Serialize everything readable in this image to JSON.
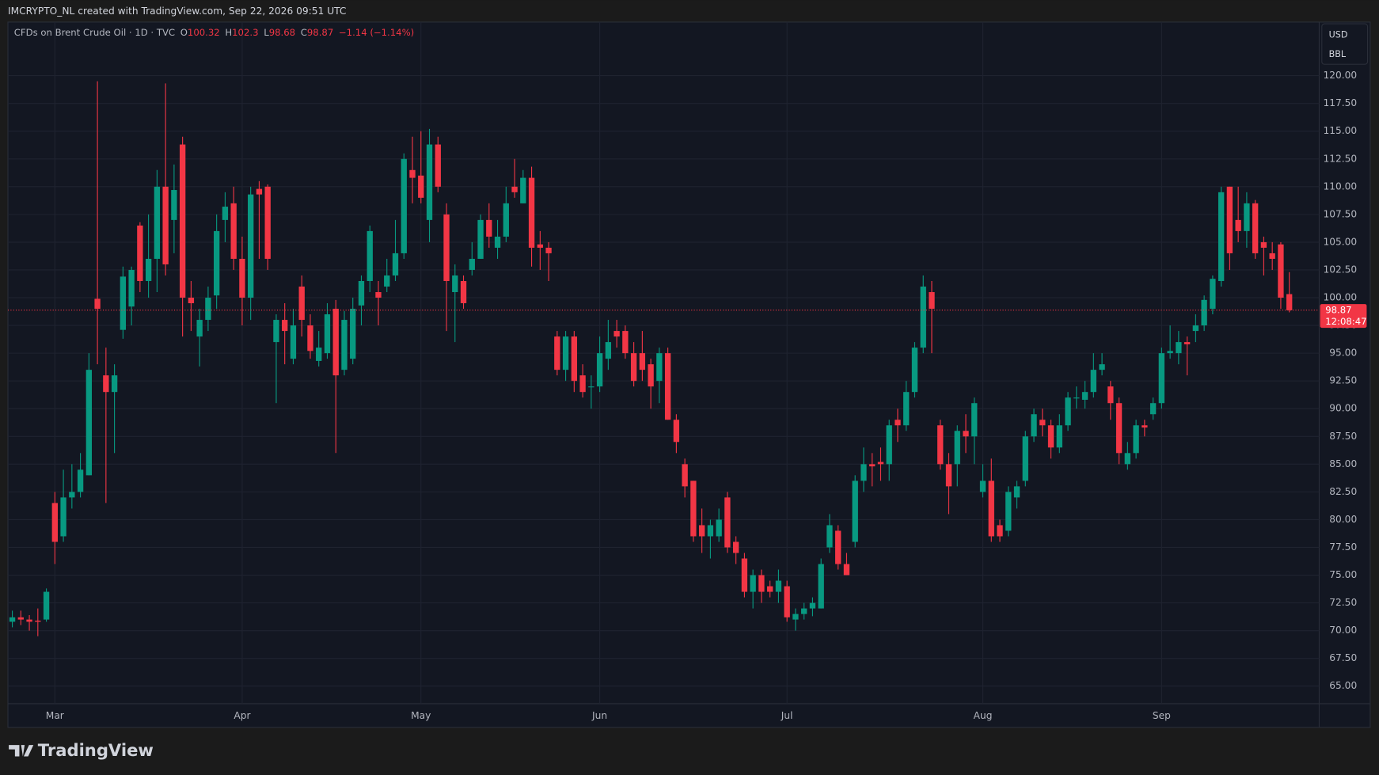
{
  "header": {
    "title": "IMCRYPTO_NL created with TradingView.com, Sep 22, 2026 09:51 UTC"
  },
  "footer": {
    "brand": "TradingView"
  },
  "chart_data": {
    "type": "candlestick",
    "symbol": "CFDs on Brent Crude Oil · 1D · TVC",
    "ohlc_letters": [
      "O",
      "H",
      "L",
      "C"
    ],
    "change_label": "−1.14 (−1.14%)",
    "currency": "USD",
    "unit": "BBL",
    "countdown": "12:08:47",
    "up_color": "#089981",
    "down_color": "#f23645",
    "grid": true,
    "categories": [
      null,
      null,
      null,
      null,
      null,
      "Mar",
      null,
      null,
      null,
      null,
      null,
      null,
      null,
      null,
      null,
      null,
      null,
      null,
      null,
      null,
      null,
      null,
      null,
      null,
      null,
      null,
      null,
      "Apr",
      null,
      null,
      null,
      null,
      null,
      null,
      null,
      null,
      null,
      null,
      null,
      null,
      null,
      null,
      null,
      null,
      null,
      null,
      null,
      null,
      "May",
      null,
      null,
      null,
      null,
      null,
      null,
      null,
      null,
      null,
      null,
      null,
      null,
      null,
      null,
      null,
      null,
      null,
      null,
      null,
      null,
      "Jun",
      null,
      null,
      null,
      null,
      null,
      null,
      null,
      null,
      null,
      null,
      null,
      null,
      null,
      null,
      null,
      null,
      null,
      null,
      null,
      null,
      null,
      "Jul",
      null,
      null,
      null,
      null,
      null,
      null,
      null,
      null,
      null,
      null,
      null,
      null,
      null,
      null,
      null,
      null,
      null,
      null,
      null,
      null,
      null,
      null,
      "Aug",
      null,
      null,
      null,
      null,
      null,
      null,
      null,
      null,
      null,
      null,
      null,
      null,
      null,
      null,
      null,
      null,
      null,
      null,
      null,
      null,
      "Sep",
      null,
      null,
      null,
      null,
      null,
      null,
      null,
      null,
      null,
      null,
      null,
      null,
      null,
      null,
      null
    ],
    "open": [
      70.8,
      71.2,
      71.0,
      70.9,
      71.0,
      81.5,
      78.5,
      82.0,
      82.5,
      84.0,
      99.9,
      93.0,
      91.5,
      97.1,
      99.2,
      106.5,
      101.5,
      103.5,
      110.0,
      107.0,
      113.8,
      100.0,
      96.5,
      98.0,
      100.2,
      107.0,
      108.5,
      103.5,
      100.0,
      109.8,
      110.0,
      96.0,
      98.0,
      94.5,
      101.0,
      97.5,
      94.3,
      95.0,
      99.0,
      93.5,
      94.5,
      99.3,
      101.5,
      100.5,
      101.0,
      102.0,
      104.0,
      111.5,
      111.0,
      107.0,
      113.8,
      107.5,
      100.5,
      101.5,
      102.5,
      103.5,
      107.0,
      104.5,
      105.5,
      110.0,
      108.5,
      110.8,
      104.8,
      104.5,
      96.5,
      93.5,
      96.5,
      93.0,
      92.0,
      92.0,
      94.5,
      97.0,
      97.0,
      95.0,
      95.0,
      94.0,
      92.5,
      95.0,
      89.0,
      85.0,
      83.5,
      79.5,
      78.5,
      78.5,
      82.0,
      78.0,
      76.5,
      73.5,
      75.0,
      74.0,
      73.5,
      74.0,
      71.0,
      71.5,
      72.0,
      72.0,
      77.5,
      79.0,
      76.0,
      78.0,
      83.5,
      85.0,
      85.2,
      85.0,
      89.0,
      88.5,
      91.5,
      95.5,
      100.5,
      88.5,
      85.0,
      85.0,
      88.0,
      87.5,
      82.5,
      83.5,
      79.5,
      79.0,
      82.0,
      83.5,
      87.5,
      89.0,
      88.5,
      86.5,
      88.5,
      91.0,
      90.8,
      91.5,
      93.5,
      92.0,
      90.5,
      85.0,
      86.0,
      88.5,
      89.5,
      90.5,
      95.0,
      95.0,
      96.0,
      97.0,
      97.5,
      99.0,
      101.5,
      110.0,
      107.0,
      106.0,
      108.5,
      105.0,
      104.0,
      104.8,
      100.32
    ],
    "high": [
      71.8,
      71.8,
      71.4,
      72.0,
      73.8,
      82.5,
      84.5,
      85.0,
      86.0,
      95.0,
      119.5,
      95.5,
      94.0,
      102.8,
      102.8,
      106.8,
      107.5,
      111.5,
      119.3,
      112.0,
      114.5,
      101.5,
      99.0,
      101.0,
      107.5,
      109.5,
      110.0,
      105.5,
      110.0,
      110.5,
      110.2,
      98.5,
      99.5,
      99.0,
      102.0,
      98.5,
      97.0,
      99.5,
      99.8,
      98.8,
      100.0,
      102.0,
      106.5,
      101.5,
      103.5,
      107.0,
      113.0,
      114.5,
      115.0,
      115.2,
      114.5,
      108.5,
      103.0,
      102.0,
      105.0,
      107.5,
      108.5,
      107.0,
      110.0,
      112.5,
      111.5,
      111.8,
      106.0,
      105.0,
      97.0,
      97.0,
      97.0,
      94.0,
      93.0,
      96.5,
      98.0,
      98.0,
      97.5,
      96.0,
      97.0,
      94.5,
      95.5,
      95.5,
      89.5,
      85.5,
      83.5,
      81.0,
      80.0,
      81.0,
      82.5,
      78.5,
      77.0,
      75.5,
      75.5,
      74.5,
      75.5,
      74.5,
      72.0,
      72.5,
      73.0,
      76.5,
      80.5,
      79.5,
      77.0,
      84.0,
      86.5,
      86.0,
      86.5,
      89.0,
      90.0,
      92.5,
      96.0,
      102.0,
      101.5,
      89.0,
      86.0,
      88.5,
      89.5,
      91.0,
      85.0,
      85.5,
      80.0,
      83.0,
      83.5,
      88.0,
      90.0,
      90.0,
      89.0,
      89.5,
      91.5,
      92.0,
      92.5,
      95.0,
      95.0,
      92.5,
      91.0,
      87.0,
      89.0,
      89.0,
      91.0,
      95.5,
      97.5,
      97.0,
      96.5,
      98.5,
      100.2,
      102.0,
      110.0,
      110.0,
      110.0,
      109.5,
      108.8,
      105.5,
      105.0,
      105.0,
      102.3
    ],
    "low": [
      70.3,
      70.5,
      70.0,
      69.5,
      70.8,
      76.0,
      78.0,
      81.0,
      82.0,
      84.0,
      94.0,
      81.5,
      86.0,
      96.3,
      97.5,
      100.5,
      100.0,
      100.5,
      102.0,
      104.0,
      96.5,
      97.0,
      93.8,
      97.0,
      99.0,
      105.0,
      102.5,
      97.5,
      98.0,
      103.5,
      102.5,
      90.5,
      94.0,
      94.0,
      96.5,
      94.5,
      93.8,
      94.5,
      86.0,
      93.0,
      94.0,
      97.5,
      100.5,
      97.5,
      100.5,
      101.5,
      103.5,
      108.5,
      108.5,
      105.0,
      109.5,
      97.0,
      96.0,
      99.0,
      102.0,
      103.5,
      104.5,
      103.5,
      105.0,
      109.0,
      108.5,
      102.8,
      102.5,
      101.5,
      93.0,
      92.5,
      91.5,
      91.0,
      90.0,
      91.5,
      93.5,
      95.5,
      94.5,
      92.0,
      92.5,
      90.0,
      90.5,
      89.0,
      86.0,
      82.0,
      78.0,
      77.0,
      76.5,
      78.0,
      77.0,
      76.0,
      73.0,
      72.0,
      72.5,
      73.0,
      72.5,
      70.8,
      70.0,
      71.0,
      71.3,
      72.0,
      77.0,
      75.5,
      75.0,
      77.5,
      82.5,
      83.0,
      83.5,
      83.5,
      87.0,
      88.0,
      91.0,
      95.0,
      95.0,
      84.5,
      80.5,
      83.0,
      86.0,
      85.0,
      82.0,
      78.0,
      78.0,
      78.5,
      81.0,
      83.0,
      87.0,
      87.5,
      85.5,
      86.0,
      88.0,
      90.0,
      90.0,
      91.0,
      93.0,
      89.0,
      85.0,
      84.5,
      85.5,
      87.5,
      89.0,
      90.0,
      94.5,
      94.0,
      93.0,
      96.0,
      97.0,
      98.5,
      101.0,
      102.5,
      105.0,
      104.5,
      103.5,
      102.0,
      102.5,
      99.0,
      98.68
    ],
    "close": [
      71.2,
      71.0,
      70.8,
      70.8,
      73.5,
      78.0,
      82.0,
      82.5,
      84.5,
      93.5,
      99.0,
      91.5,
      93.0,
      101.9,
      102.5,
      101.5,
      103.5,
      110.0,
      103.0,
      109.7,
      100.0,
      99.5,
      98.0,
      100.0,
      106.0,
      108.2,
      103.5,
      100.0,
      109.3,
      109.3,
      103.5,
      98.0,
      97.0,
      97.5,
      98.0,
      95.2,
      95.5,
      98.5,
      93.0,
      98.0,
      99.0,
      101.5,
      106.0,
      100.0,
      102.0,
      104.0,
      112.5,
      110.8,
      109.0,
      113.8,
      110.0,
      101.5,
      102.0,
      99.5,
      103.5,
      107.0,
      105.5,
      105.5,
      108.5,
      109.5,
      110.8,
      104.5,
      104.5,
      104.0,
      93.5,
      96.5,
      92.5,
      91.5,
      92.0,
      95.0,
      96.0,
      96.5,
      95.0,
      92.5,
      93.5,
      92.0,
      95.0,
      89.0,
      87.0,
      83.0,
      78.5,
      78.5,
      79.5,
      80.0,
      77.5,
      77.0,
      73.5,
      75.0,
      73.5,
      73.5,
      74.5,
      71.2,
      71.5,
      72.0,
      72.5,
      76.0,
      79.5,
      76.0,
      75.0,
      83.5,
      85.0,
      84.8,
      85.0,
      88.5,
      88.5,
      91.5,
      95.5,
      101.0,
      99.0,
      85.0,
      83.0,
      88.0,
      87.5,
      90.5,
      83.5,
      78.5,
      78.5,
      82.5,
      83.0,
      87.5,
      89.5,
      88.5,
      86.5,
      88.5,
      91.0,
      91.0,
      91.5,
      93.5,
      94.0,
      90.5,
      86.0,
      86.0,
      88.5,
      88.3,
      90.5,
      95.0,
      95.2,
      96.0,
      95.8,
      97.5,
      99.8,
      101.7,
      109.5,
      104.0,
      106.0,
      108.5,
      104.0,
      104.5,
      103.5,
      100.0,
      98.87
    ],
    "ylim": [
      63.42,
      124.83
    ],
    "yticks": [
      {
        "value": 65,
        "label": "65.00"
      },
      {
        "value": 67.5,
        "label": "67.50"
      },
      {
        "value": 70,
        "label": "70.00"
      },
      {
        "value": 72.5,
        "label": "72.50"
      },
      {
        "value": 75,
        "label": "75.00"
      },
      {
        "value": 77.5,
        "label": "77.50"
      },
      {
        "value": 80,
        "label": "80.00"
      },
      {
        "value": 82.5,
        "label": "82.50"
      },
      {
        "value": 85,
        "label": "85.00"
      },
      {
        "value": 87.5,
        "label": "87.50"
      },
      {
        "value": 90,
        "label": "90.00"
      },
      {
        "value": 92.5,
        "label": "92.50"
      },
      {
        "value": 95,
        "label": "95.00"
      },
      {
        "value": 97.5,
        "label": "97.50"
      },
      {
        "value": 100,
        "label": "100.00"
      },
      {
        "value": 102.5,
        "label": "102.50"
      },
      {
        "value": 105,
        "label": "105.00"
      },
      {
        "value": 107.5,
        "label": "107.50"
      },
      {
        "value": 110,
        "label": "110.00"
      },
      {
        "value": 112.5,
        "label": "112.50"
      },
      {
        "value": 115,
        "label": "115.00"
      },
      {
        "value": 117.5,
        "label": "117.50"
      },
      {
        "value": 120,
        "label": "120.00"
      }
    ]
  }
}
